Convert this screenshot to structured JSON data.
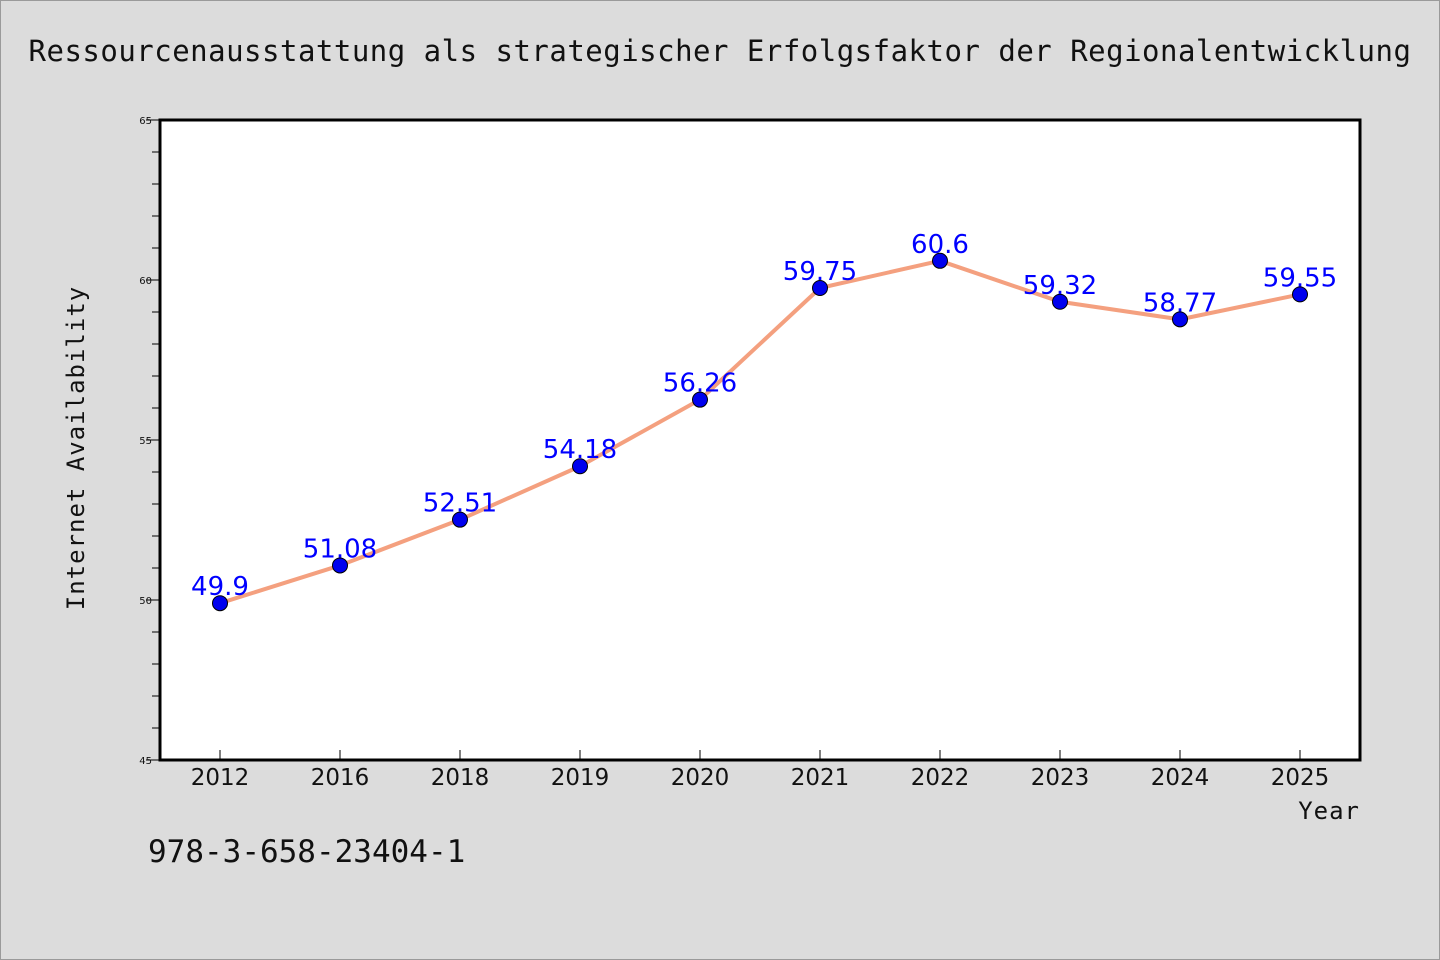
{
  "chart_data": {
    "type": "line",
    "title": "Ressourcenausstattung als strategischer Erfolgsfaktor der Regionalentwicklung",
    "xlabel": "Year",
    "ylabel": "Internet Availability",
    "categories": [
      "2012",
      "2016",
      "2018",
      "2019",
      "2020",
      "2021",
      "2022",
      "2023",
      "2024",
      "2025"
    ],
    "values": [
      49.9,
      51.08,
      52.51,
      54.18,
      56.26,
      59.75,
      60.6,
      59.32,
      58.77,
      59.55
    ],
    "data_labels": [
      "49.9",
      "51.08",
      "52.51",
      "54.18",
      "56.26",
      "59.75",
      "60.6",
      "59.32",
      "58.77",
      "59.55"
    ],
    "ylim": [
      45,
      65
    ],
    "y_ticks": [
      45,
      50,
      55,
      60,
      65
    ],
    "grid": false,
    "legend": "none",
    "colors": {
      "line": "#f4a07f",
      "marker": "#0000ee",
      "label": "#0000ff",
      "plot_background": "#ffffff",
      "figure_background": "#dcdcdc"
    }
  },
  "footer": {
    "isbn": "978-3-658-23404-1"
  }
}
